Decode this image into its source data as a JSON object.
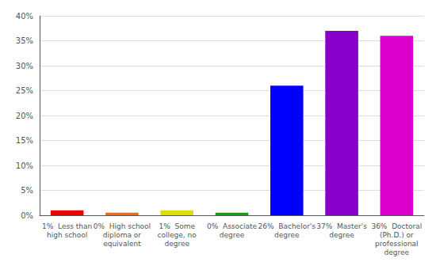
{
  "chart_data": {
    "type": "bar",
    "categories": [
      "1%  Less than\nhigh school",
      "0%  High school\ndiploma or\nequivalent",
      "1%  Some\ncollege, no\ndegree",
      "0%  Associate\ndegree",
      "26%  Bachelor's\ndegree",
      "37%  Master's\ndegree",
      "36%  Doctoral\n(Ph.D.) or\nprofessional\ndegree"
    ],
    "values": [
      1,
      0.5,
      1,
      0.5,
      26,
      37,
      36
    ],
    "colors": [
      "#ee0000",
      "#ff6600",
      "#dddd00",
      "#00aa00",
      "#0000ff",
      "#8800cc",
      "#dd00cc"
    ],
    "ylim": [
      0,
      40
    ],
    "yticks": [
      {
        "value": 0,
        "label": "0%"
      },
      {
        "value": 5,
        "label": "5%"
      },
      {
        "value": 10,
        "label": "10%"
      },
      {
        "value": 15,
        "label": "15%"
      },
      {
        "value": 20,
        "label": "20%"
      },
      {
        "value": 25,
        "label": "25%"
      },
      {
        "value": 30,
        "label": "30%"
      },
      {
        "value": 35,
        "label": "35%"
      },
      {
        "value": 40,
        "label": "40%"
      }
    ],
    "grid": true
  }
}
